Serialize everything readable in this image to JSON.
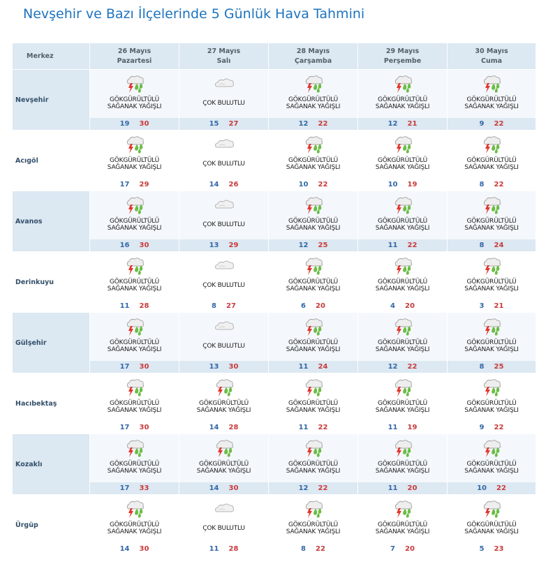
{
  "page": {
    "title": "Nevşehir ve Bazı İlçelerinde 5 Günlük Hava Tahmini"
  },
  "colors": {
    "title": "#1e73be",
    "header_bg": "#dce8f2",
    "min_temp": "#3368a8",
    "max_temp": "#c93a3a"
  },
  "header": {
    "corner": "Merkez",
    "days": [
      {
        "date": "26 Mayıs",
        "day": "Pazartesi"
      },
      {
        "date": "27 Mayıs",
        "day": "Salı"
      },
      {
        "date": "28 Mayıs",
        "day": "Çarşamba"
      },
      {
        "date": "29 Mayıs",
        "day": "Perşembe"
      },
      {
        "date": "30 Mayıs",
        "day": "Cuma"
      }
    ]
  },
  "rows": [
    {
      "city": "Nevşehir",
      "cells": [
        {
          "icon": "thunder-shower-icon",
          "l1": "GÖKGÜRÜLTÜLÜ",
          "l2": "SAĞANAK YAĞIŞLI",
          "min": "19",
          "max": "30"
        },
        {
          "icon": "cloudy-icon",
          "l1": "ÇOK BULUTLU",
          "l2": "",
          "min": "15",
          "max": "27"
        },
        {
          "icon": "thunder-shower-icon",
          "l1": "GÖKGÜRÜLTÜLÜ",
          "l2": "SAĞANAK YAĞIŞLI",
          "min": "12",
          "max": "22"
        },
        {
          "icon": "thunder-shower-icon",
          "l1": "GÖKGÜRÜLTÜLÜ",
          "l2": "SAĞANAK YAĞIŞLI",
          "min": "12",
          "max": "21"
        },
        {
          "icon": "thunder-shower-icon",
          "l1": "GÖKGÜRÜLTÜLÜ",
          "l2": "SAĞANAK YAĞIŞLI",
          "min": "9",
          "max": "22"
        }
      ]
    },
    {
      "city": "Acıgöl",
      "cells": [
        {
          "icon": "thunder-shower-icon",
          "l1": "GÖKGÜRÜLTÜLÜ",
          "l2": "SAĞANAK YAĞIŞLI",
          "min": "17",
          "max": "29"
        },
        {
          "icon": "cloudy-icon",
          "l1": "ÇOK BULUTLU",
          "l2": "",
          "min": "14",
          "max": "26"
        },
        {
          "icon": "thunder-shower-icon",
          "l1": "GÖKGÜRÜLTÜLÜ",
          "l2": "SAĞANAK YAĞIŞLI",
          "min": "10",
          "max": "22"
        },
        {
          "icon": "thunder-shower-icon",
          "l1": "GÖKGÜRÜLTÜLÜ",
          "l2": "SAĞANAK YAĞIŞLI",
          "min": "10",
          "max": "19"
        },
        {
          "icon": "thunder-shower-icon",
          "l1": "GÖKGÜRÜLTÜLÜ",
          "l2": "SAĞANAK YAĞIŞLI",
          "min": "8",
          "max": "22"
        }
      ]
    },
    {
      "city": "Avanos",
      "cells": [
        {
          "icon": "thunder-shower-icon",
          "l1": "GÖKGÜRÜLTÜLÜ",
          "l2": "SAĞANAK YAĞIŞLI",
          "min": "16",
          "max": "30"
        },
        {
          "icon": "cloudy-icon",
          "l1": "ÇOK BULUTLU",
          "l2": "",
          "min": "13",
          "max": "29"
        },
        {
          "icon": "thunder-shower-icon",
          "l1": "GÖKGÜRÜLTÜLÜ",
          "l2": "SAĞANAK YAĞIŞLI",
          "min": "12",
          "max": "25"
        },
        {
          "icon": "thunder-shower-icon",
          "l1": "GÖKGÜRÜLTÜLÜ",
          "l2": "SAĞANAK YAĞIŞLI",
          "min": "11",
          "max": "22"
        },
        {
          "icon": "thunder-shower-icon",
          "l1": "GÖKGÜRÜLTÜLÜ",
          "l2": "SAĞANAK YAĞIŞLI",
          "min": "8",
          "max": "24"
        }
      ]
    },
    {
      "city": "Derinkuyu",
      "cells": [
        {
          "icon": "thunder-shower-icon",
          "l1": "GÖKGÜRÜLTÜLÜ",
          "l2": "SAĞANAK YAĞIŞLI",
          "min": "11",
          "max": "28"
        },
        {
          "icon": "cloudy-icon",
          "l1": "ÇOK BULUTLU",
          "l2": "",
          "min": "8",
          "max": "27"
        },
        {
          "icon": "thunder-shower-icon",
          "l1": "GÖKGÜRÜLTÜLÜ",
          "l2": "SAĞANAK YAĞIŞLI",
          "min": "6",
          "max": "20"
        },
        {
          "icon": "thunder-shower-icon",
          "l1": "GÖKGÜRÜLTÜLÜ",
          "l2": "SAĞANAK YAĞIŞLI",
          "min": "4",
          "max": "20"
        },
        {
          "icon": "thunder-shower-icon",
          "l1": "GÖKGÜRÜLTÜLÜ",
          "l2": "SAĞANAK YAĞIŞLI",
          "min": "3",
          "max": "21"
        }
      ]
    },
    {
      "city": "Gülşehir",
      "cells": [
        {
          "icon": "thunder-shower-icon",
          "l1": "GÖKGÜRÜLTÜLÜ",
          "l2": "SAĞANAK YAĞIŞLI",
          "min": "17",
          "max": "30"
        },
        {
          "icon": "cloudy-icon",
          "l1": "ÇOK BULUTLU",
          "l2": "",
          "min": "13",
          "max": "30"
        },
        {
          "icon": "thunder-shower-icon",
          "l1": "GÖKGÜRÜLTÜLÜ",
          "l2": "SAĞANAK YAĞIŞLI",
          "min": "11",
          "max": "24"
        },
        {
          "icon": "thunder-shower-icon",
          "l1": "GÖKGÜRÜLTÜLÜ",
          "l2": "SAĞANAK YAĞIŞLI",
          "min": "12",
          "max": "22"
        },
        {
          "icon": "thunder-shower-icon",
          "l1": "GÖKGÜRÜLTÜLÜ",
          "l2": "SAĞANAK YAĞIŞLI",
          "min": "8",
          "max": "25"
        }
      ]
    },
    {
      "city": "Hacıbektaş",
      "cells": [
        {
          "icon": "thunder-shower-icon",
          "l1": "GÖKGÜRÜLTÜLÜ",
          "l2": "SAĞANAK YAĞIŞLI",
          "min": "17",
          "max": "30"
        },
        {
          "icon": "thunder-shower-icon",
          "l1": "GÖKGÜRÜLTÜLÜ",
          "l2": "SAĞANAK YAĞIŞLI",
          "min": "14",
          "max": "28"
        },
        {
          "icon": "thunder-shower-icon",
          "l1": "GÖKGÜRÜLTÜLÜ",
          "l2": "SAĞANAK YAĞIŞLI",
          "min": "11",
          "max": "22"
        },
        {
          "icon": "thunder-shower-icon",
          "l1": "GÖKGÜRÜLTÜLÜ",
          "l2": "SAĞANAK YAĞIŞLI",
          "min": "11",
          "max": "19"
        },
        {
          "icon": "thunder-shower-icon",
          "l1": "GÖKGÜRÜLTÜLÜ",
          "l2": "SAĞANAK YAĞIŞLI",
          "min": "9",
          "max": "22"
        }
      ]
    },
    {
      "city": "Kozaklı",
      "cells": [
        {
          "icon": "thunder-shower-icon",
          "l1": "GÖKGÜRÜLTÜLÜ",
          "l2": "SAĞANAK YAĞIŞLI",
          "min": "17",
          "max": "33"
        },
        {
          "icon": "thunder-shower-icon",
          "l1": "GÖKGÜRÜLTÜLÜ",
          "l2": "SAĞANAK YAĞIŞLI",
          "min": "14",
          "max": "30"
        },
        {
          "icon": "thunder-shower-icon",
          "l1": "GÖKGÜRÜLTÜLÜ",
          "l2": "SAĞANAK YAĞIŞLI",
          "min": "12",
          "max": "22"
        },
        {
          "icon": "thunder-shower-icon",
          "l1": "GÖKGÜRÜLTÜLÜ",
          "l2": "SAĞANAK YAĞIŞLI",
          "min": "11",
          "max": "20"
        },
        {
          "icon": "thunder-shower-icon",
          "l1": "GÖKGÜRÜLTÜLÜ",
          "l2": "SAĞANAK YAĞIŞLI",
          "min": "10",
          "max": "22"
        }
      ]
    },
    {
      "city": "Ürgüp",
      "cells": [
        {
          "icon": "thunder-shower-icon",
          "l1": "GÖKGÜRÜLTÜLÜ",
          "l2": "SAĞANAK YAĞIŞLI",
          "min": "14",
          "max": "30"
        },
        {
          "icon": "cloudy-icon",
          "l1": "ÇOK BULUTLU",
          "l2": "",
          "min": "11",
          "max": "28"
        },
        {
          "icon": "thunder-shower-icon",
          "l1": "GÖKGÜRÜLTÜLÜ",
          "l2": "SAĞANAK YAĞIŞLI",
          "min": "8",
          "max": "22"
        },
        {
          "icon": "thunder-shower-icon",
          "l1": "GÖKGÜRÜLTÜLÜ",
          "l2": "SAĞANAK YAĞIŞLI",
          "min": "7",
          "max": "20"
        },
        {
          "icon": "thunder-shower-icon",
          "l1": "GÖKGÜRÜLTÜLÜ",
          "l2": "SAĞANAK YAĞIŞLI",
          "min": "5",
          "max": "23"
        }
      ]
    }
  ]
}
